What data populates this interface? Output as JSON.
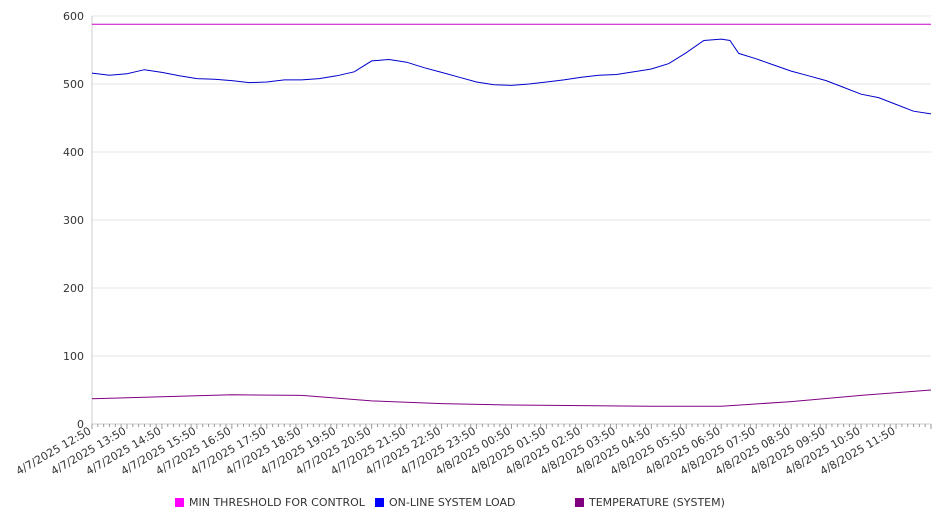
{
  "chart_data": {
    "type": "line",
    "title": "",
    "xlabel": "",
    "ylabel": "",
    "ylim": [
      0,
      600
    ],
    "yticks": [
      0,
      100,
      200,
      300,
      400,
      500,
      600
    ],
    "grid": true,
    "legend_position": "bottom",
    "x_tick_labels": [
      "4/7/2025 12:50",
      "4/7/2025 13:50",
      "4/7/2025 14:50",
      "4/7/2025 15:50",
      "4/7/2025 16:50",
      "4/7/2025 17:50",
      "4/7/2025 18:50",
      "4/7/2025 19:50",
      "4/7/2025 20:50",
      "4/7/2025 21:50",
      "4/7/2025 22:50",
      "4/7/2025 23:50",
      "4/8/2025 00:50",
      "4/8/2025 01:50",
      "4/8/2025 02:50",
      "4/8/2025 03:50",
      "4/8/2025 04:50",
      "4/8/2025 05:50",
      "4/8/2025 06:50",
      "4/8/2025 07:50",
      "4/8/2025 08:50",
      "4/8/2025 09:50",
      "4/8/2025 10:50",
      "4/8/2025 11:50"
    ],
    "series": [
      {
        "name": "MIN THRESHOLD FOR CONTROL",
        "color": "#cc00cc",
        "x": [
          "4/7/2025 12:50",
          "4/8/2025 12:50"
        ],
        "values": [
          588,
          588
        ]
      },
      {
        "name": "ON-LINE SYSTEM LOAD",
        "color": "#0000cc",
        "x": [
          "4/7/2025 12:50",
          "4/7/2025 13:20",
          "4/7/2025 13:50",
          "4/7/2025 14:20",
          "4/7/2025 14:50",
          "4/7/2025 15:20",
          "4/7/2025 15:50",
          "4/7/2025 16:20",
          "4/7/2025 16:50",
          "4/7/2025 17:20",
          "4/7/2025 17:50",
          "4/7/2025 18:20",
          "4/7/2025 18:50",
          "4/7/2025 19:20",
          "4/7/2025 19:50",
          "4/7/2025 20:20",
          "4/7/2025 20:50",
          "4/7/2025 21:20",
          "4/7/2025 21:50",
          "4/7/2025 22:20",
          "4/7/2025 22:50",
          "4/7/2025 23:20",
          "4/7/2025 23:50",
          "4/8/2025 00:20",
          "4/8/2025 00:50",
          "4/8/2025 01:20",
          "4/8/2025 01:50",
          "4/8/2025 02:20",
          "4/8/2025 02:50",
          "4/8/2025 03:20",
          "4/8/2025 03:50",
          "4/8/2025 04:20",
          "4/8/2025 04:50",
          "4/8/2025 05:20",
          "4/8/2025 05:50",
          "4/8/2025 06:20",
          "4/8/2025 06:50",
          "4/8/2025 07:05",
          "4/8/2025 07:20",
          "4/8/2025 07:50",
          "4/8/2025 08:20",
          "4/8/2025 08:50",
          "4/8/2025 09:20",
          "4/8/2025 09:50",
          "4/8/2025 10:20",
          "4/8/2025 10:50",
          "4/8/2025 11:20",
          "4/8/2025 11:50",
          "4/8/2025 12:20",
          "4/8/2025 12:50"
        ],
        "values": [
          516,
          513,
          515,
          521,
          517,
          512,
          508,
          507,
          505,
          502,
          503,
          506,
          506,
          508,
          512,
          518,
          534,
          536,
          532,
          524,
          517,
          510,
          503,
          499,
          498,
          500,
          503,
          506,
          510,
          513,
          514,
          518,
          522,
          530,
          546,
          564,
          566,
          564,
          545,
          537,
          528,
          519,
          512,
          505,
          495,
          485,
          480,
          470,
          460,
          456
        ]
      },
      {
        "name": "TEMPERATURE (SYSTEM)",
        "color": "#800080",
        "x": [
          "4/7/2025 12:50",
          "4/7/2025 14:50",
          "4/7/2025 16:50",
          "4/7/2025 18:50",
          "4/7/2025 20:50",
          "4/7/2025 22:50",
          "4/8/2025 00:50",
          "4/8/2025 02:50",
          "4/8/2025 04:50",
          "4/8/2025 06:50",
          "4/8/2025 08:50",
          "4/8/2025 10:50",
          "4/8/2025 12:50"
        ],
        "values": [
          37,
          40,
          43,
          42,
          34,
          30,
          28,
          27,
          26,
          26,
          33,
          42,
          50
        ]
      }
    ]
  }
}
